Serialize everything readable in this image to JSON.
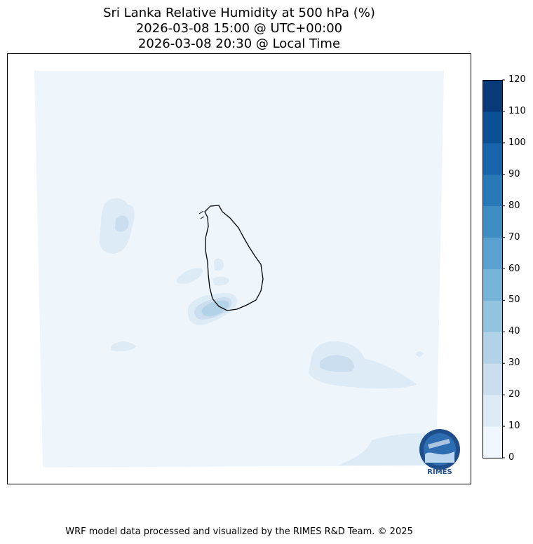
{
  "title": {
    "line1": "Sri Lanka Relative Humidity at 500 hPa (%)",
    "line2": "2026-03-08 15:00 @ UTC+00:00",
    "line3": "2026-03-08 20:30 @ Local Time"
  },
  "colorbar": {
    "levels": [
      "0",
      "10",
      "20",
      "30",
      "40",
      "50",
      "60",
      "70",
      "80",
      "90",
      "100",
      "110",
      "120"
    ],
    "colors": [
      "#f0f6fd",
      "#ddebf7",
      "#cadef0",
      "#b2d2e8",
      "#93c4df",
      "#75b3d8",
      "#5aa1cf",
      "#3f8dc3",
      "#2979b9",
      "#1764ab",
      "#0b4f94",
      "#083a7a"
    ]
  },
  "logo": {
    "text": "RIMES"
  },
  "footer": "WRF model data processed and visualized by the RIMES R&D Team. © 2025"
}
